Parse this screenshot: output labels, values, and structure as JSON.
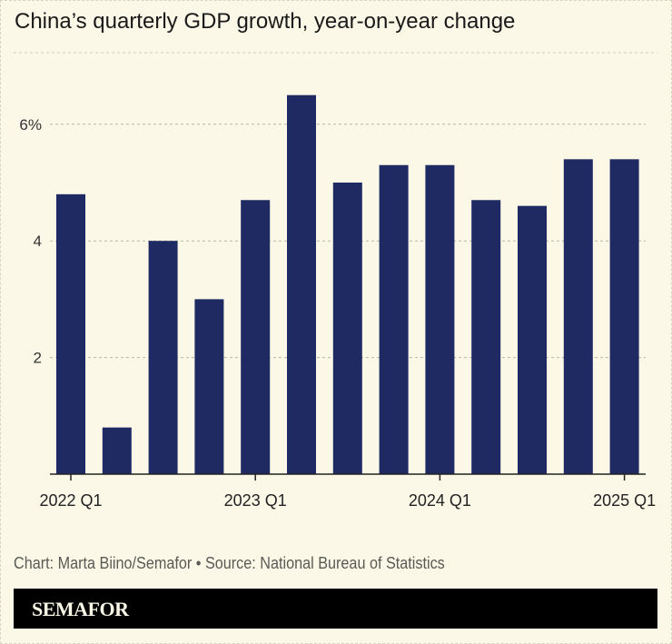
{
  "title": "China’s quarterly GDP growth, year-on-year change",
  "credit": "Chart: Marta Biino/Semafor • Source: National Bureau of Statistics",
  "brand": "SEMAFOR",
  "chart_data": {
    "type": "bar",
    "categories": [
      "2022 Q1",
      "2022 Q2",
      "2022 Q3",
      "2022 Q4",
      "2023 Q1",
      "2023 Q2",
      "2023 Q3",
      "2023 Q4",
      "2024 Q1",
      "2024 Q2",
      "2024 Q3",
      "2024 Q4",
      "2025 Q1"
    ],
    "values": [
      4.8,
      0.8,
      4.0,
      3.0,
      4.7,
      6.5,
      5.0,
      5.3,
      5.3,
      4.7,
      4.6,
      5.4,
      5.4
    ],
    "x_tick_labels": [
      "2022 Q1",
      "2023 Q1",
      "2024 Q1",
      "2025 Q1"
    ],
    "y_ticks": [
      2,
      4,
      6
    ],
    "y_tick_labels": [
      "2",
      "4",
      "6%"
    ],
    "ylim": [
      0,
      7
    ],
    "grid": true,
    "bar_color": "#1f2a63",
    "xlabel": "",
    "ylabel": ""
  }
}
